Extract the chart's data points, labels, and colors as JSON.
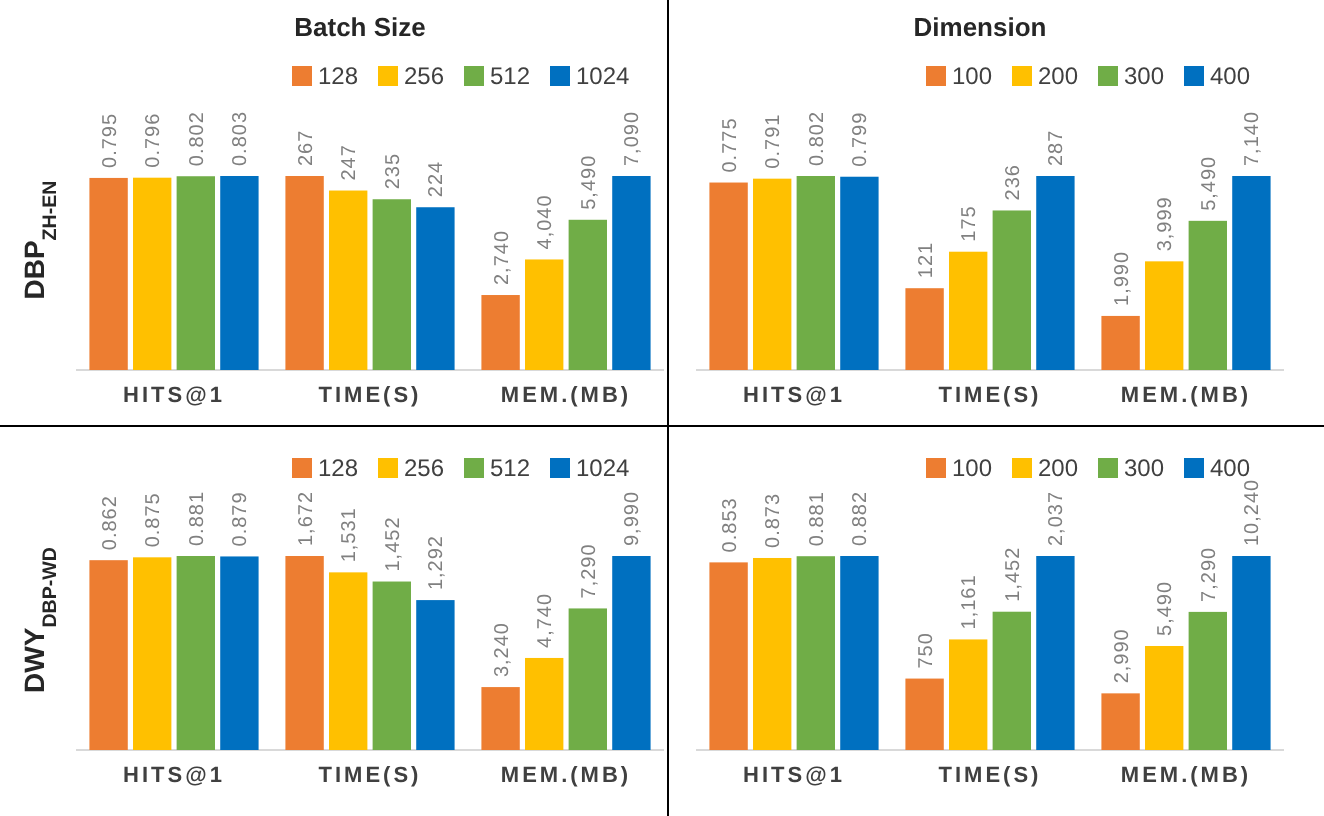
{
  "chart_data": [
    {
      "type": "bar",
      "ylabel": "DBP$_{ZH-EN}$",
      "categories": [
        "HITS@1"
      ],
      "data_labels": true,
      "series": [
        {
          "color": "#ed7d31",
          "values": [
            0.795
          ]
        },
        {
          "color": "#ffc000",
          "values": [
            0.796
          ]
        },
        {
          "color": "#70ad47",
          "values": [
            0.802
          ]
        },
        {
          "color": "#0070c0",
          "values": [
            0.803
          ]
        }
      ]
    },
    {
      "type": "bar",
      "title": "Batch Size",
      "categories": [
        "TIME(S)"
      ],
      "data_labels": true,
      "legend": "top right",
      "series": [
        {
          "name": "128",
          "color": "#ed7d31",
          "values": [
            267
          ]
        },
        {
          "name": "256",
          "color": "#ffc000",
          "values": [
            247
          ]
        },
        {
          "name": "512",
          "color": "#70ad47",
          "values": [
            235
          ]
        },
        {
          "name": "1024",
          "color": "#0070c0",
          "values": [
            224
          ]
        }
      ]
    },
    {
      "type": "bar",
      "categories": [
        "MEM.(MB)"
      ],
      "series": [
        {
          "color": "#ed7d31",
          "values": [
            2740
          ],
          "value_labels": [
            "2,740"
          ]
        },
        {
          "color": "#ffc000",
          "values": [
            4040
          ],
          "value_labels": [
            "4,040"
          ]
        },
        {
          "color": "#70ad47",
          "values": [
            5490
          ],
          "value_labels": [
            "5,490"
          ]
        },
        {
          "color": "#0070c0",
          "values": [
            7090
          ],
          "value_labels": [
            "7,090"
          ]
        }
      ]
    },
    {
      "type": "bar",
      "categories": [
        "HITS@1"
      ],
      "data_labels": true,
      "series": [
        {
          "color": "#ed7d31",
          "values": [
            0.775
          ]
        },
        {
          "color": "#ffc000",
          "values": [
            0.791
          ]
        },
        {
          "color": "#70ad47",
          "values": [
            0.802
          ]
        },
        {
          "color": "#0070c0",
          "values": [
            0.799
          ]
        }
      ]
    },
    {
      "type": "bar",
      "title": "Dimension",
      "categories": [
        "TIME(S)"
      ],
      "data_labels": true,
      "legend": "top right",
      "series": [
        {
          "name": "100",
          "color": "#ed7d31",
          "values": [
            121
          ]
        },
        {
          "name": "200",
          "color": "#ffc000",
          "values": [
            175
          ]
        },
        {
          "name": "300",
          "color": "#70ad47",
          "values": [
            236
          ]
        },
        {
          "name": "400",
          "color": "#0070c0",
          "values": [
            287
          ]
        }
      ]
    },
    {
      "type": "bar",
      "categories": [
        "MEM.(MB)"
      ],
      "series": [
        {
          "color": "#ed7d31",
          "values": [
            1990
          ],
          "value_labels": [
            "1,990"
          ]
        },
        {
          "color": "#ffc000",
          "values": [
            3999
          ],
          "value_labels": [
            "3,999"
          ]
        },
        {
          "color": "#70ad47",
          "values": [
            5490
          ],
          "value_labels": [
            "5,490"
          ]
        },
        {
          "color": "#0070c0",
          "values": [
            7140
          ],
          "value_labels": [
            "7,140"
          ]
        }
      ]
    },
    {
      "type": "bar",
      "ylabel": "DWY$_{DBP-WD}$",
      "categories": [
        "HITS@1"
      ],
      "data_labels": true,
      "series": [
        {
          "color": "#ed7d31",
          "values": [
            0.862
          ]
        },
        {
          "color": "#ffc000",
          "values": [
            0.875
          ]
        },
        {
          "color": "#70ad47",
          "values": [
            0.881
          ]
        },
        {
          "color": "#0070c0",
          "values": [
            0.879
          ]
        }
      ]
    },
    {
      "type": "bar",
      "categories": [
        "TIME(S)"
      ],
      "legend": "top right",
      "series": [
        {
          "name": "128",
          "color": "#ed7d31",
          "values": [
            1672
          ],
          "value_labels": [
            "1,672"
          ]
        },
        {
          "name": "256",
          "color": "#ffc000",
          "values": [
            1531
          ],
          "value_labels": [
            "1,531"
          ]
        },
        {
          "name": "512",
          "color": "#70ad47",
          "values": [
            1452
          ],
          "value_labels": [
            "1,452"
          ]
        },
        {
          "name": "1024",
          "color": "#0070c0",
          "values": [
            1292
          ],
          "value_labels": [
            "1,292"
          ]
        }
      ]
    },
    {
      "type": "bar",
      "categories": [
        "MEM.(MB)"
      ],
      "series": [
        {
          "color": "#ed7d31",
          "values": [
            3240
          ],
          "value_labels": [
            "3,240"
          ]
        },
        {
          "color": "#ffc000",
          "values": [
            4740
          ],
          "value_labels": [
            "4,740"
          ]
        },
        {
          "color": "#70ad47",
          "values": [
            7290
          ],
          "value_labels": [
            "7,290"
          ]
        },
        {
          "color": "#0070c0",
          "values": [
            9990
          ],
          "value_labels": [
            "9,990"
          ]
        }
      ]
    },
    {
      "type": "bar",
      "categories": [
        "HITS@1"
      ],
      "data_labels": true,
      "series": [
        {
          "color": "#ed7d31",
          "values": [
            0.853
          ]
        },
        {
          "color": "#ffc000",
          "values": [
            0.873
          ]
        },
        {
          "color": "#70ad47",
          "values": [
            0.881
          ]
        },
        {
          "color": "#0070c0",
          "values": [
            0.882
          ]
        }
      ]
    },
    {
      "type": "bar",
      "categories": [
        "TIME(S)"
      ],
      "legend": "top right",
      "series": [
        {
          "name": "100",
          "color": "#ed7d31",
          "values": [
            750
          ],
          "value_labels": [
            "750"
          ]
        },
        {
          "name": "200",
          "color": "#ffc000",
          "values": [
            1161
          ],
          "value_labels": [
            "1,161"
          ]
        },
        {
          "name": "300",
          "color": "#70ad47",
          "values": [
            1452
          ],
          "value_labels": [
            "1,452"
          ]
        },
        {
          "name": "400",
          "color": "#0070c0",
          "values": [
            2037
          ],
          "value_labels": [
            "2,037"
          ]
        }
      ]
    },
    {
      "type": "bar",
      "categories": [
        "MEM.(MB)"
      ],
      "series": [
        {
          "color": "#ed7d31",
          "values": [
            2990
          ],
          "value_labels": [
            "2,990"
          ]
        },
        {
          "color": "#ffc000",
          "values": [
            5490
          ],
          "value_labels": [
            "5,490"
          ]
        },
        {
          "color": "#70ad47",
          "values": [
            7290
          ],
          "value_labels": [
            "7,290"
          ]
        },
        {
          "color": "#0070c0",
          "values": [
            10240
          ],
          "value_labels": [
            "10,240"
          ]
        }
      ]
    }
  ]
}
